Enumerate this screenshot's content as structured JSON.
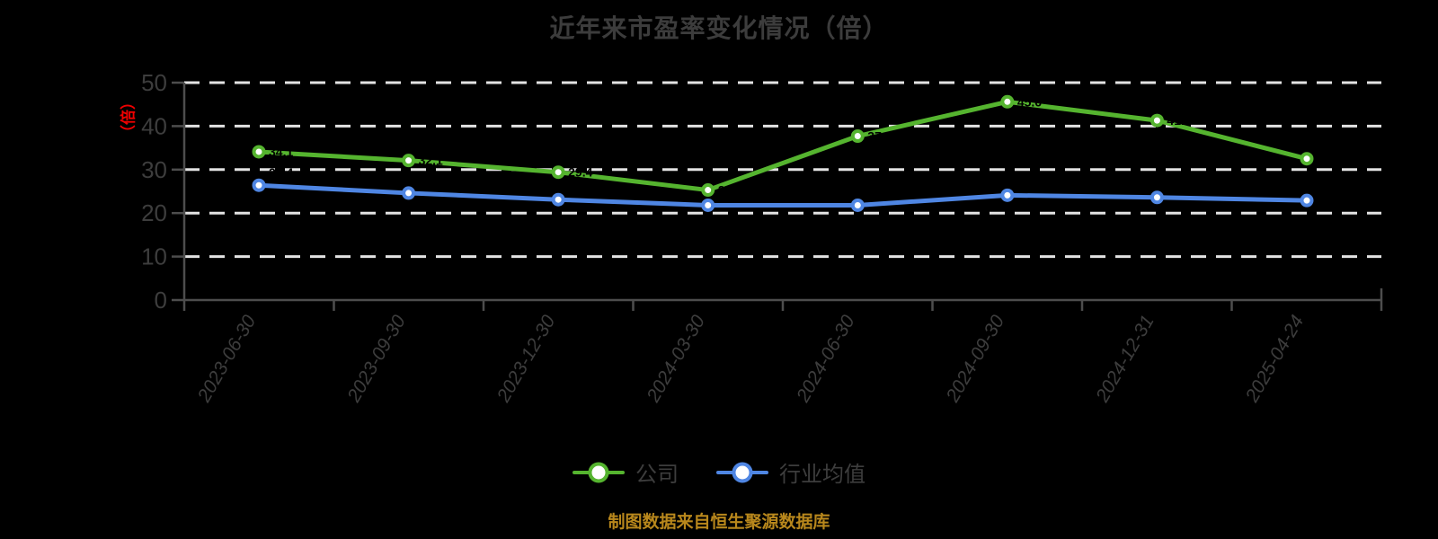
{
  "chart_data": {
    "type": "line",
    "title": "近年来市盈率变化情况（倍）",
    "y_unit": "（倍）",
    "xlabel": "",
    "ylabel": "（倍）",
    "categories": [
      "2023-06-30",
      "2023-09-30",
      "2023-12-30",
      "2024-03-30",
      "2024-06-30",
      "2024-09-30",
      "2024-12-31",
      "2025-04-24"
    ],
    "series": [
      {
        "name": "公司",
        "color": "#55b42f",
        "values": [
          34.1,
          32.1,
          29.4,
          25.3,
          37.7,
          45.6,
          41.3,
          32.5
        ]
      },
      {
        "name": "行业均值",
        "color": "#4f86e3",
        "values": [
          26.4,
          24.6,
          23.1,
          21.8,
          21.8,
          24.1,
          23.6,
          22.9
        ]
      }
    ],
    "ylim": [
      0,
      50
    ],
    "y_ticks": [
      0,
      10,
      20,
      30,
      40,
      50
    ],
    "grid": "horizontal-dashed",
    "legend_position": "bottom",
    "footer": "制图数据来自恒生聚源数据库"
  },
  "colors": {
    "background": "#000000",
    "title_text": "#3c3c3c",
    "axis_line": "#4d4d4d",
    "tick_text": "#3d3d3d",
    "gridline": "#e3e3e3",
    "y_unit_red": "#f00000",
    "footer_gold": "#b8871c",
    "point_label": "#000000",
    "marker_fill": "#ffffff"
  }
}
